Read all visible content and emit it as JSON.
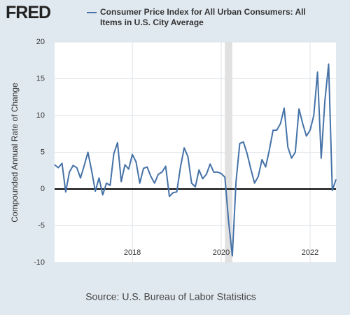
{
  "chart_data": {
    "type": "line",
    "logo": "FRED",
    "ylabel": "Compounded Annual Rate of Change",
    "source": "Source: U.S. Bureau of Labor Statistics",
    "xlim": [
      2016.25,
      2022.583
    ],
    "xticks": [
      2018,
      2020,
      2022
    ],
    "ylim": [
      -10,
      20
    ],
    "yticks": [
      -10,
      -5,
      0,
      5,
      10,
      15,
      20
    ],
    "grid": true,
    "recession": [
      2020.083,
      2020.25
    ],
    "series": [
      {
        "name": "Consumer Price Index for All Urban Consumers: All Items in U.S. City Average",
        "color": "#4572a7",
        "x": [
          2016.25,
          2016.333,
          2016.417,
          2016.5,
          2016.583,
          2016.667,
          2016.75,
          2016.833,
          2016.917,
          2017,
          2017.083,
          2017.167,
          2017.25,
          2017.333,
          2017.417,
          2017.5,
          2017.583,
          2017.667,
          2017.75,
          2017.833,
          2017.917,
          2018,
          2018.083,
          2018.167,
          2018.25,
          2018.333,
          2018.417,
          2018.5,
          2018.583,
          2018.667,
          2018.75,
          2018.833,
          2018.917,
          2019,
          2019.083,
          2019.167,
          2019.25,
          2019.333,
          2019.417,
          2019.5,
          2019.583,
          2019.667,
          2019.75,
          2019.833,
          2019.917,
          2020,
          2020.083,
          2020.167,
          2020.25,
          2020.333,
          2020.417,
          2020.5,
          2020.583,
          2020.667,
          2020.75,
          2020.833,
          2020.917,
          2021,
          2021.083,
          2021.167,
          2021.25,
          2021.333,
          2021.417,
          2021.5,
          2021.583,
          2021.667,
          2021.75,
          2021.833,
          2021.917,
          2022,
          2022.083,
          2022.167,
          2022.25,
          2022.333,
          2022.417,
          2022.5,
          2022.583
        ],
        "values": [
          3.3,
          2.9,
          3.5,
          -0.4,
          2.3,
          3.2,
          2.9,
          1.5,
          3.2,
          5.0,
          2.5,
          -0.3,
          1.5,
          -0.8,
          0.8,
          0.5,
          4.8,
          6.3,
          1.0,
          3.3,
          2.7,
          4.7,
          3.7,
          0.8,
          2.8,
          3.0,
          1.7,
          0.8,
          2.0,
          2.3,
          3.1,
          -1.0,
          -0.5,
          -0.4,
          3.0,
          5.6,
          4.4,
          0.8,
          0.3,
          2.6,
          1.4,
          2.0,
          3.4,
          2.3,
          2.3,
          2.1,
          1.6,
          -4.5,
          -9.1,
          1.0,
          6.2,
          6.4,
          4.8,
          2.7,
          0.8,
          1.7,
          4.0,
          3.0,
          5.3,
          8.0,
          8.0,
          8.9,
          11.0,
          5.7,
          4.2,
          5.0,
          10.9,
          8.9,
          7.2,
          8.0,
          10.0,
          15.9,
          4.2,
          12.0,
          17.0,
          -0.2,
          1.3
        ]
      }
    ]
  }
}
